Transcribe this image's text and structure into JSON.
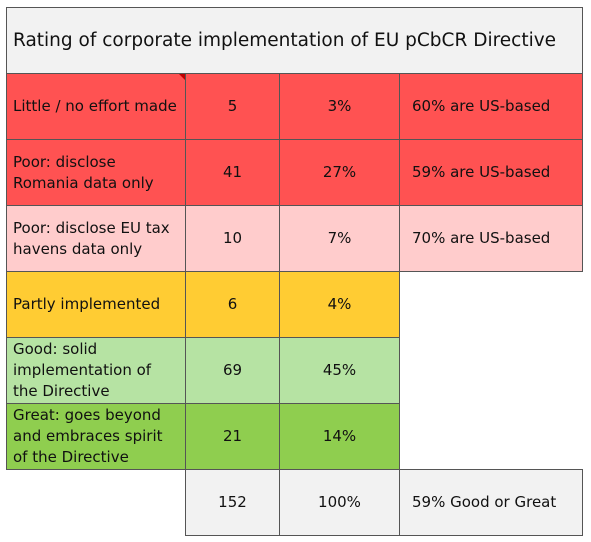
{
  "title": "Rating of corporate implementation of EU pCbCR Directive",
  "colors": {
    "red_dark": "#ff5252",
    "red_light": "#ffcccc",
    "amber": "#ffcc33",
    "green_light": "#b6e3a3",
    "green_dark": "#8fce4f",
    "total_bg": "#f2f2f2",
    "title_bg": "#f2f2f2",
    "comment_marker": "#c00000"
  },
  "rows": [
    {
      "label": "Little / no effort made",
      "count": "5",
      "percent": "3%",
      "note": "60% are US-based"
    },
    {
      "label": "Poor: disclose Romania data only",
      "count": "41",
      "percent": "27%",
      "note": "59% are US-based"
    },
    {
      "label": "Poor: disclose EU tax havens data only",
      "count": "10",
      "percent": "7%",
      "note": "70% are US-based"
    },
    {
      "label": "Partly implemented",
      "count": "6",
      "percent": "4%",
      "note": ""
    },
    {
      "label": "Good: solid implementation of the Directive",
      "count": "69",
      "percent": "45%",
      "note": ""
    },
    {
      "label": "Great: goes beyond and embraces spirit of the Directive",
      "count": "21",
      "percent": "14%",
      "note": ""
    }
  ],
  "total": {
    "count": "152",
    "percent": "100%",
    "note": "59% Good or Great"
  }
}
